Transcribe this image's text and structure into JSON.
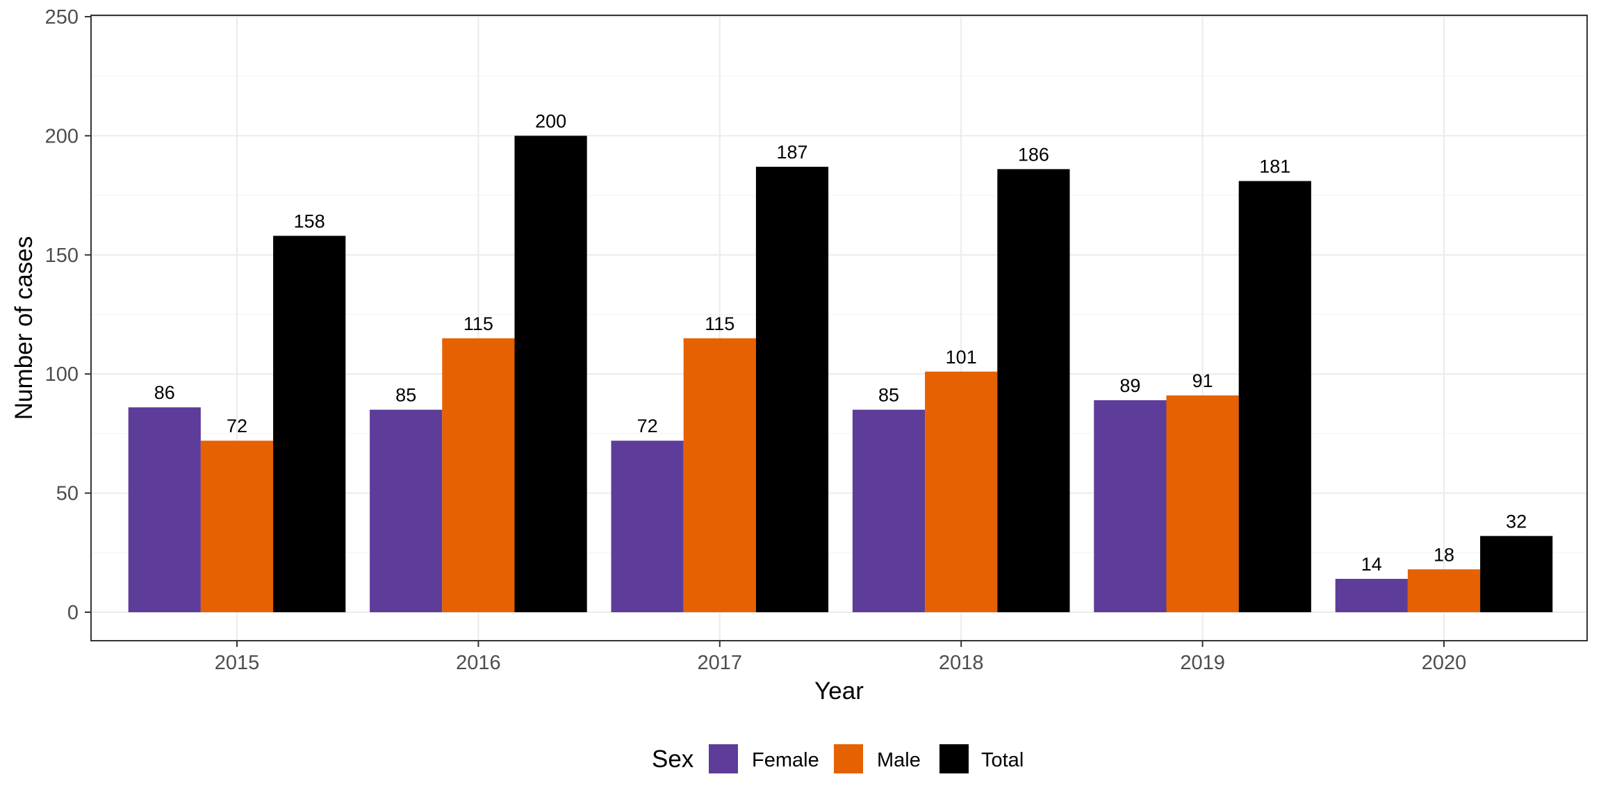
{
  "chart_data": {
    "type": "bar",
    "categories": [
      "2015",
      "2016",
      "2017",
      "2018",
      "2019",
      "2020"
    ],
    "series": [
      {
        "name": "Female",
        "color": "#5e3c99",
        "values": [
          86,
          85,
          72,
          85,
          89,
          14
        ]
      },
      {
        "name": "Male",
        "color": "#e66101",
        "values": [
          72,
          115,
          115,
          101,
          91,
          18
        ]
      },
      {
        "name": "Total",
        "color": "#000000",
        "values": [
          158,
          200,
          187,
          186,
          181,
          32
        ]
      }
    ],
    "xlabel": "Year",
    "ylabel": "Number of cases",
    "ylim": [
      0,
      250
    ],
    "yticks": [
      0,
      50,
      100,
      150,
      200,
      250
    ],
    "grid": true,
    "legend": {
      "title": "Sex",
      "position": "bottom"
    }
  }
}
